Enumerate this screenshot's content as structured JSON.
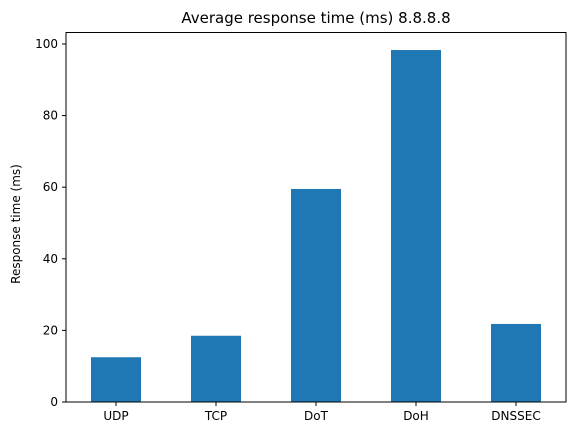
{
  "chart_data": {
    "type": "bar",
    "title": "Average response time (ms) 8.8.8.8",
    "xlabel": "",
    "ylabel": "Response time (ms)",
    "categories": [
      "UDP",
      "TCP",
      "DoT",
      "DoH",
      "DNSSEC"
    ],
    "values": [
      12.5,
      18.5,
      59.5,
      98.3,
      21.8
    ],
    "ylim": [
      0,
      103.2
    ],
    "yticks": [
      0,
      20,
      40,
      60,
      80,
      100
    ],
    "grid": false,
    "bar_color": "#1f77b4"
  }
}
